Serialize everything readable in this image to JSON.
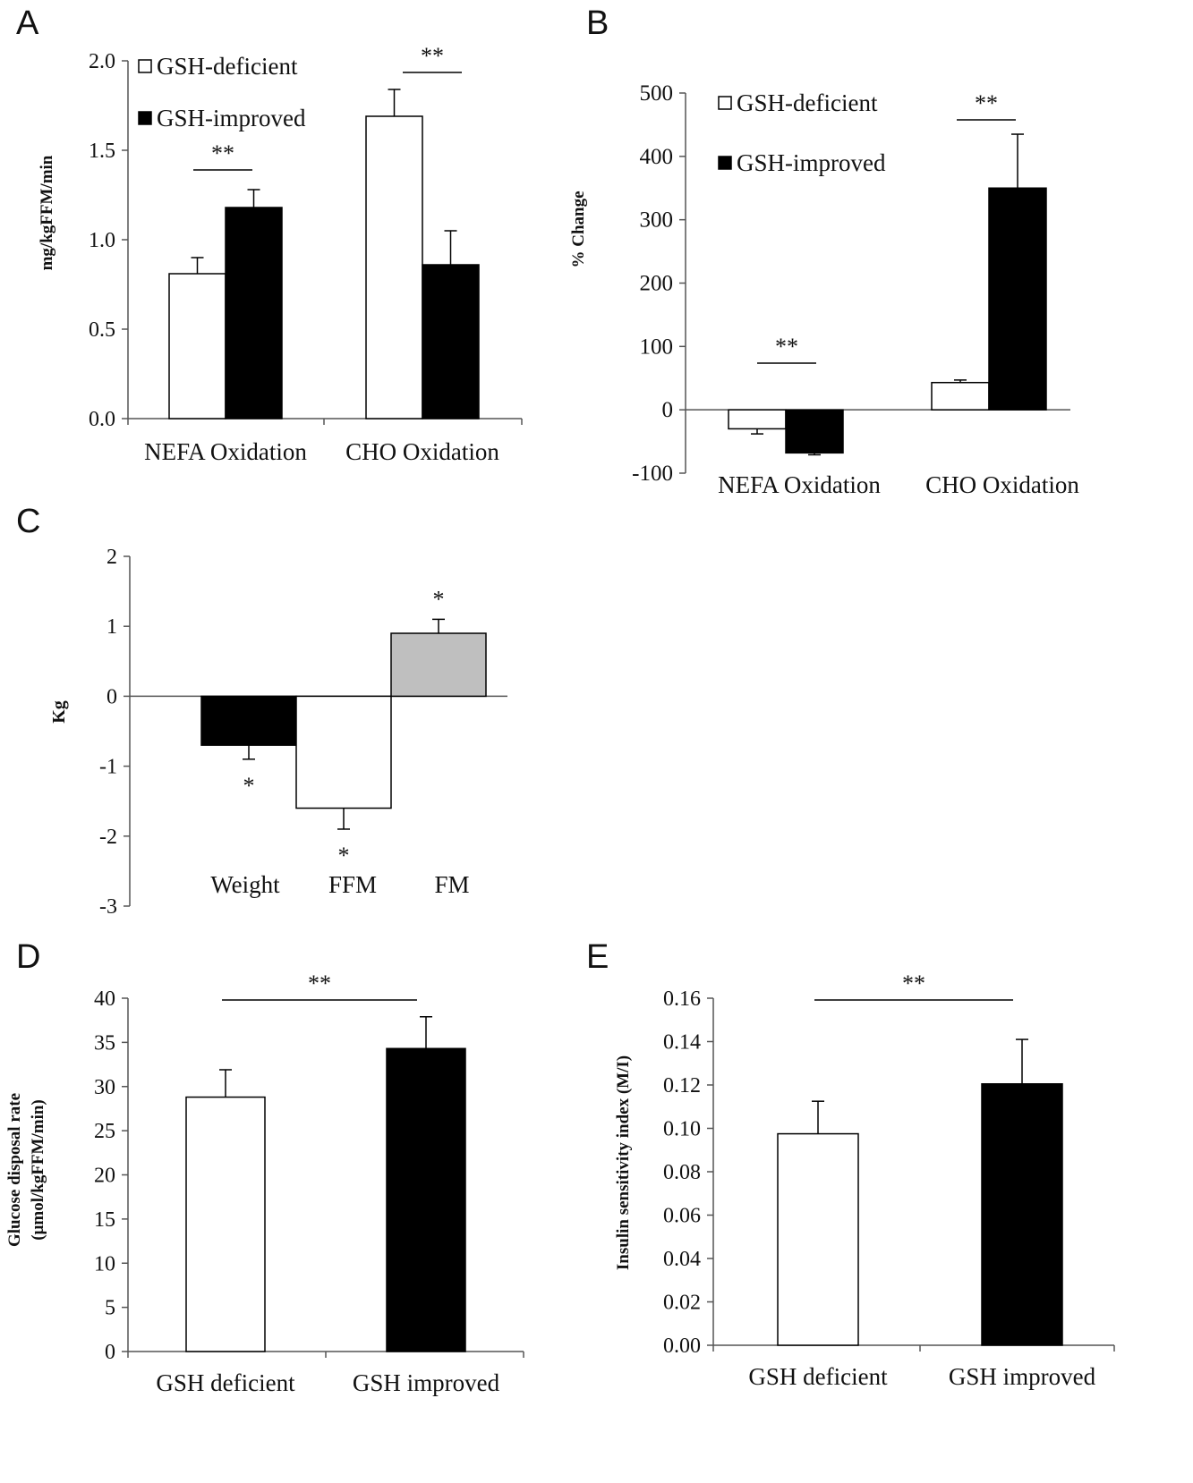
{
  "chart_data": [
    {
      "panel": "A",
      "type": "bar",
      "categories": [
        "NEFA Oxidation",
        "CHO Oxidation"
      ],
      "series": [
        {
          "name": "GSH-deficient",
          "values": [
            0.81,
            1.69
          ],
          "errors": [
            0.09,
            0.15
          ],
          "color": "#ffffff"
        },
        {
          "name": "GSH-improved",
          "values": [
            1.18,
            0.86
          ],
          "errors": [
            0.1,
            0.19
          ],
          "color": "#000000"
        }
      ],
      "ylabel": "mg/kgFFM/min",
      "ylim": [
        0,
        2.0
      ],
      "yticks": [
        "0.0",
        "0.5",
        "1.0",
        "1.5",
        "2.0"
      ],
      "legend": "top-left",
      "annotations": [
        "**",
        "**"
      ]
    },
    {
      "panel": "B",
      "type": "bar",
      "categories": [
        "NEFA Oxidation",
        "CHO Oxidation"
      ],
      "series": [
        {
          "name": "GSH-deficient",
          "values": [
            -30,
            43
          ],
          "errors": [
            8,
            4
          ],
          "color": "#ffffff"
        },
        {
          "name": "GSH-improved",
          "values": [
            -68,
            350
          ],
          "errors": [
            3,
            85
          ],
          "color": "#000000"
        }
      ],
      "ylabel": "% Change",
      "ylim": [
        -100,
        500
      ],
      "yticks": [
        "-100",
        "0",
        "100",
        "200",
        "300",
        "400",
        "500"
      ],
      "legend": "top-left",
      "annotations": [
        "**",
        "**"
      ]
    },
    {
      "panel": "C",
      "type": "bar",
      "categories": [
        "Weight",
        "FFM",
        "FM"
      ],
      "values": [
        -0.7,
        -1.6,
        0.9
      ],
      "errors": [
        0.2,
        0.3,
        0.2
      ],
      "colors": [
        "#000000",
        "#ffffff",
        "#bfbfbf"
      ],
      "ylabel": "Kg",
      "ylim": [
        -3,
        2
      ],
      "yticks": [
        "-3",
        "-2",
        "-1",
        "0",
        "1",
        "2"
      ],
      "annotations": [
        "*",
        "*",
        "*"
      ]
    },
    {
      "panel": "D",
      "type": "bar",
      "categories": [
        "GSH deficient",
        "GSH improved"
      ],
      "values": [
        28.8,
        34.3
      ],
      "errors": [
        3.1,
        3.6
      ],
      "colors": [
        "#ffffff",
        "#000000"
      ],
      "ylabel_lines": [
        "Glucose disposal rate",
        "(μmol/kgFFM/min)"
      ],
      "ylim": [
        0,
        40
      ],
      "yticks": [
        "0",
        "5",
        "10",
        "15",
        "20",
        "25",
        "30",
        "35",
        "40"
      ],
      "annotations": [
        "**"
      ]
    },
    {
      "panel": "E",
      "type": "bar",
      "categories": [
        "GSH deficient",
        "GSH improved"
      ],
      "values": [
        0.0975,
        0.1205
      ],
      "errors": [
        0.015,
        0.0205
      ],
      "colors": [
        "#ffffff",
        "#000000"
      ],
      "ylabel": "Insulin sensitivity index (M/I)",
      "ylim": [
        0,
        0.16
      ],
      "yticks": [
        "0.00",
        "0.02",
        "0.04",
        "0.06",
        "0.08",
        "0.10",
        "0.12",
        "0.14",
        "0.16"
      ],
      "annotations": [
        "**"
      ]
    }
  ]
}
